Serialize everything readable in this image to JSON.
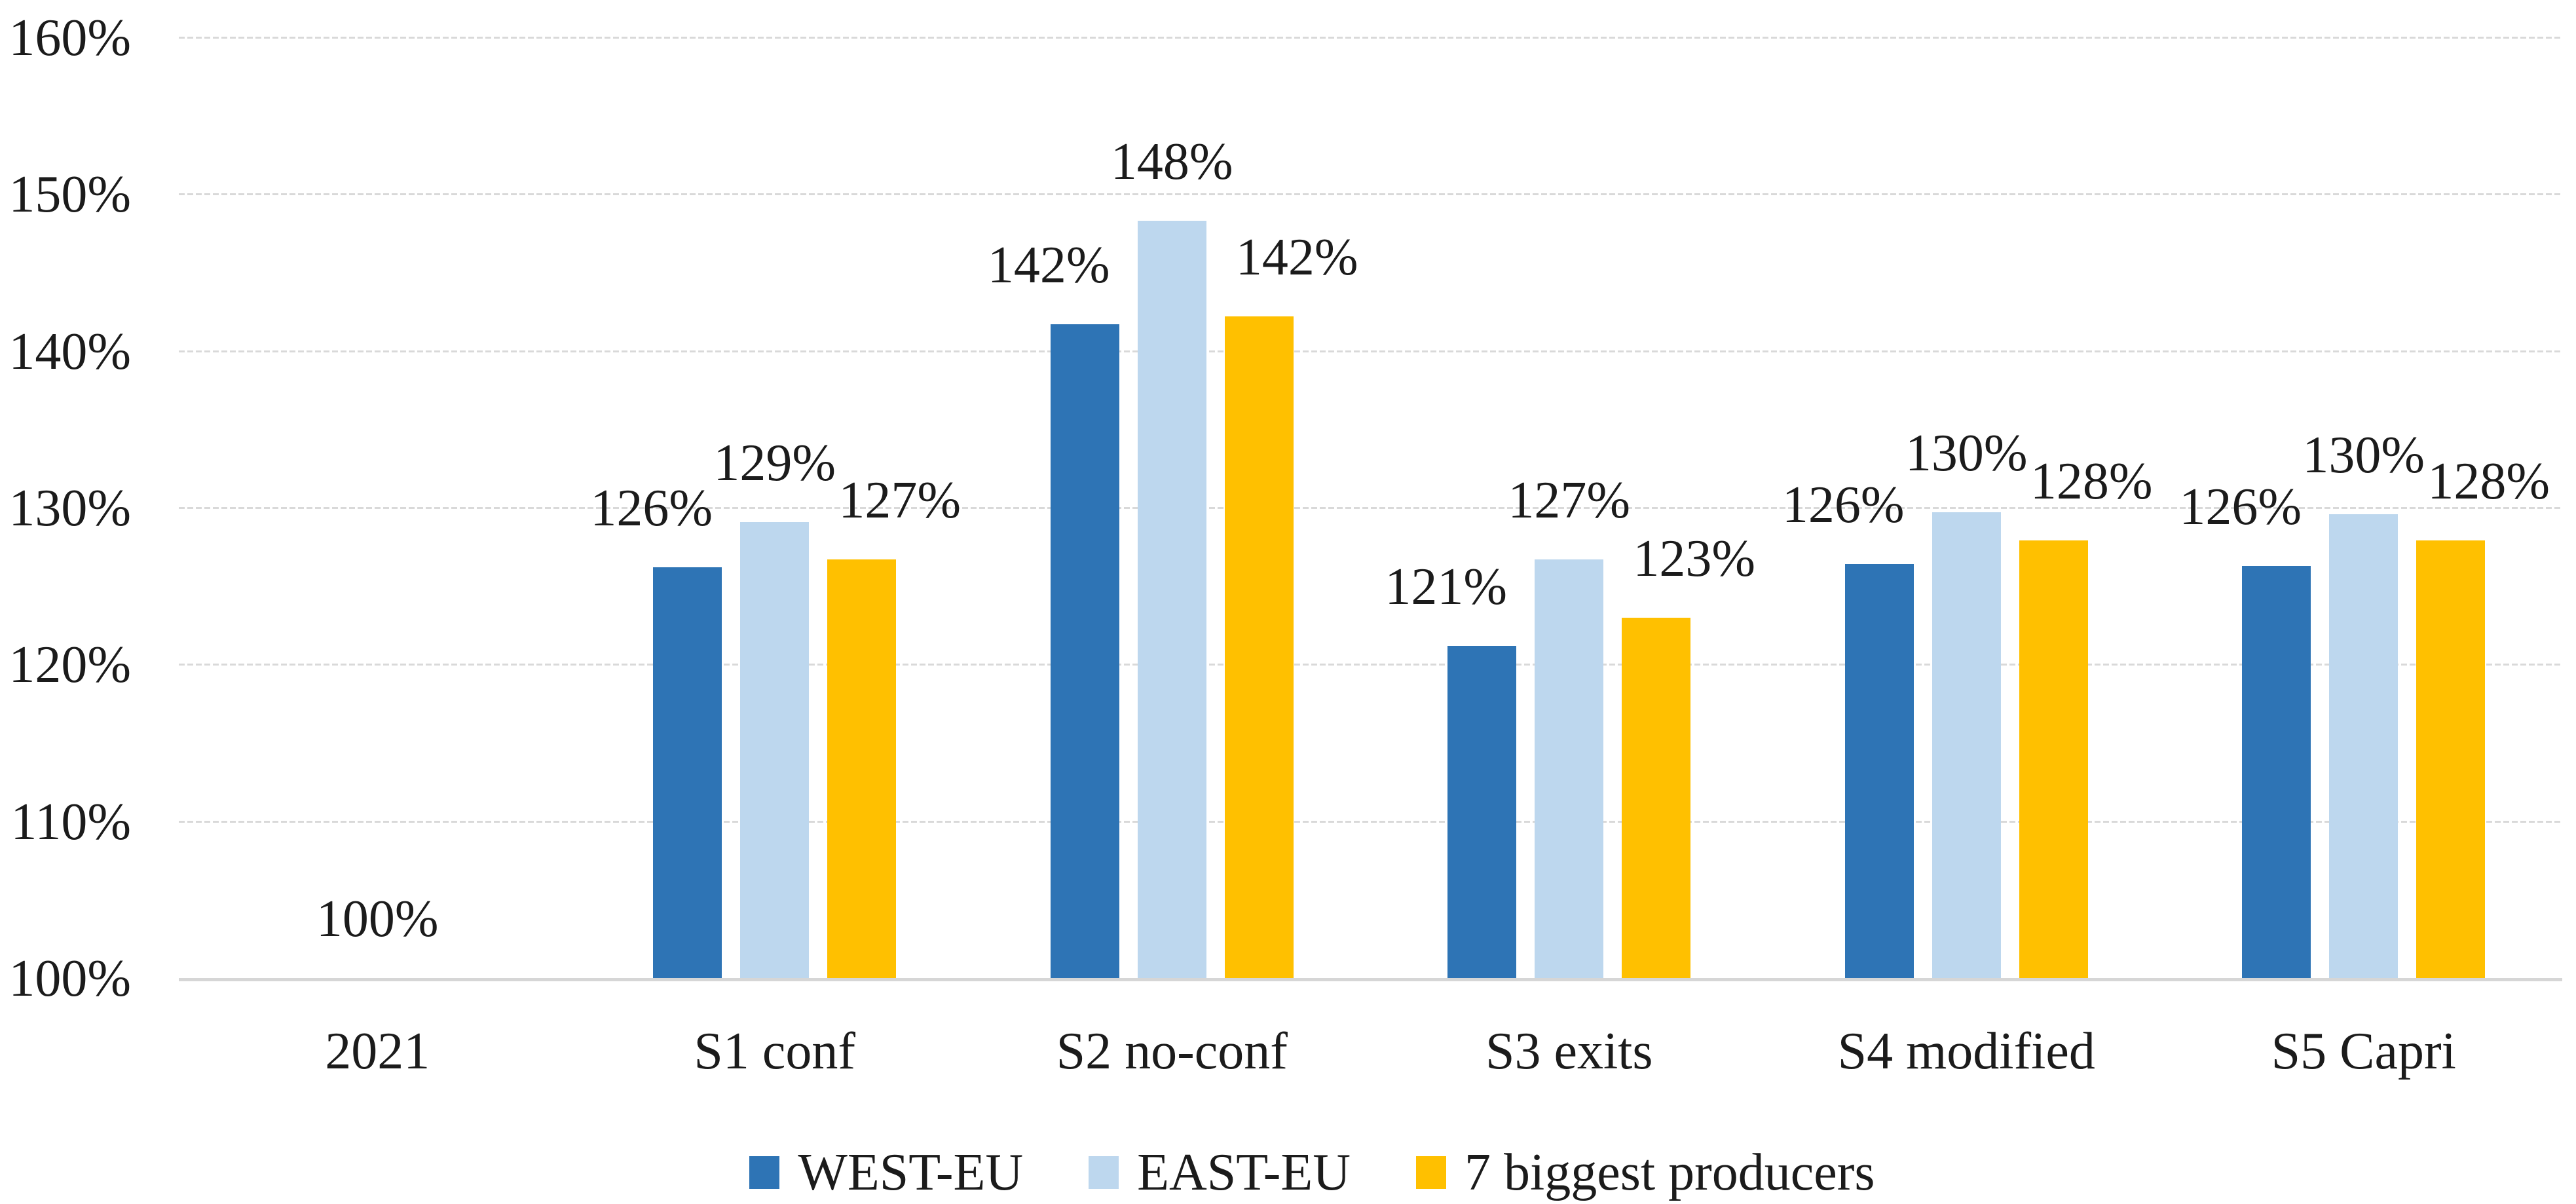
{
  "chart_data": {
    "type": "bar",
    "title": "",
    "xlabel": "",
    "ylabel": "",
    "ylim": [
      100,
      160
    ],
    "y_tick_step": 10,
    "y_tick_labels": [
      "100%",
      "110%",
      "120%",
      "130%",
      "140%",
      "150%",
      "160%"
    ],
    "grid": true,
    "legend_position": "bottom",
    "categories": [
      "2021",
      "S1 conf",
      "S2 no-conf",
      "S3 exits",
      "S4 modified",
      "S5 Capri"
    ],
    "series": [
      {
        "name": "WEST-EU",
        "color": "#2E74B5",
        "values": [
          100,
          126.2,
          141.7,
          121.2,
          126.4,
          126.3
        ],
        "labels": [
          "",
          "126%",
          "142%",
          "121%",
          "126%",
          "126%"
        ]
      },
      {
        "name": "EAST-EU",
        "color": "#BDD7EE",
        "values": [
          100,
          129.1,
          148.3,
          126.7,
          129.7,
          129.6
        ],
        "labels": [
          "100%",
          "129%",
          "148%",
          "127%",
          "130%",
          "130%"
        ]
      },
      {
        "name": "7 biggest producers",
        "color": "#FFC000",
        "values": [
          100,
          126.7,
          142.2,
          123.0,
          127.9,
          127.9
        ],
        "labels": [
          "",
          "127%",
          "142%",
          "123%",
          "128%",
          "128%"
        ]
      }
    ]
  },
  "colors": {
    "gridline": "#d9d9d9",
    "axis_line": "#d6d6d6",
    "text": "#1b1b1b",
    "background": "#ffffff"
  }
}
